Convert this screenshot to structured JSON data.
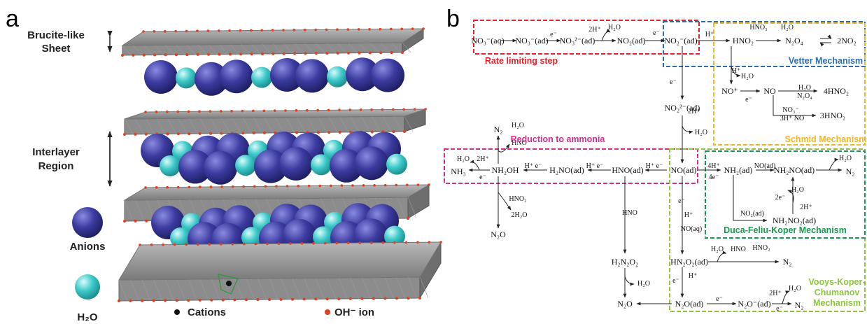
{
  "panel_a": {
    "label": "a",
    "sheet_label": [
      "Brucite-like",
      "Sheet"
    ],
    "interlayer_label": [
      "Interlayer",
      "Region"
    ],
    "anions": "Anions",
    "water": "H₂O",
    "cations": "Cations",
    "hydroxide": "OH⁻ ion"
  },
  "panel_b": {
    "label": "b",
    "mechanisms": [
      "Rate limiting step",
      "Vetter Mechanism",
      "Schmid Mechanism",
      "Reduction to ammonia",
      "Duca-Feliu-Koper Mechanism"
    ],
    "vooys_mechanism": [
      "Vooys-Koper-",
      "Chumanov",
      "Mechanism"
    ],
    "species": [
      "NO₃⁻(aq)",
      "NO₃⁻(ad)",
      "NO₃²⁻(ad)",
      "NO₂(ad)",
      "NO₂⁻(ad)",
      "HNO₂",
      "N₂O₄",
      "2NO₂",
      "NO₂²⁻(ad)",
      "NO⁺",
      "NO",
      "4HNO₂",
      "3HNO₂",
      "NO(ad)",
      "NH₂(ad)",
      "NH₂NO(ad)",
      "N₂",
      "NH₂NO₂(ad)",
      "HNO(ad)",
      "H₂NO(ad)",
      "NH₂OH",
      "NH₃",
      "N₂",
      "N₂O",
      "H₂N₂O₂",
      "N₂O",
      "HN₂O₂(ad)",
      "N₂",
      "N₂O(ad)",
      "N₂O⁻(ad)",
      "N₂"
    ],
    "reagents": [
      "e⁻",
      "2H⁺",
      "H₂O",
      "e⁻",
      "H⁺",
      "HNO₃",
      "H₂O",
      "e⁻",
      "H⁺",
      "H₂O",
      "e⁻",
      "H₂O",
      "N₂O₄",
      "NO₃⁻",
      "3H⁺ NO",
      "2H⁺",
      "H₂O",
      "4H⁺",
      "4e⁻",
      "NO(ad)",
      "H₂O",
      "2e⁻",
      "H₂O",
      "2H⁺",
      "NO₂(ad)",
      "H⁺ e⁻",
      "H⁺ e⁻",
      "H⁺ e⁻",
      "2H⁺",
      "H₂O",
      "e⁻",
      "H₂O",
      "HNO",
      "HNO₂",
      "2H₂O",
      "HNO",
      "H₂O",
      "e⁻",
      "H⁺",
      "NO(aq)",
      "H₂O",
      "HNO",
      "HNO₂",
      "e⁻",
      "H⁺",
      "e⁻",
      "e⁻",
      "2H⁺",
      "H₂O"
    ]
  }
}
